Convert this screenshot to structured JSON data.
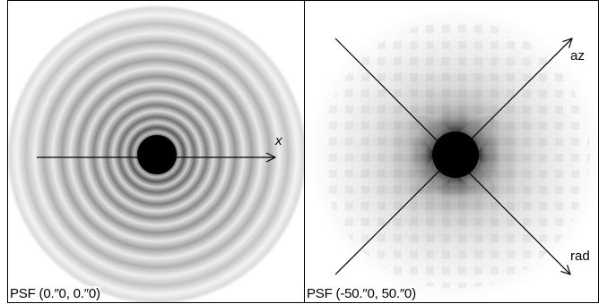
{
  "panels": [
    {
      "id": "left",
      "caption": "PSF (0.″​0, 0.″​0)",
      "axes": [
        {
          "label": "x"
        }
      ]
    },
    {
      "id": "right",
      "caption": "PSF (-50.″​0, 50.″​0)",
      "axes": [
        {
          "label": "az"
        },
        {
          "label": "rad"
        }
      ]
    }
  ],
  "colors": {
    "ink": "#000000",
    "background": "#ffffff"
  }
}
